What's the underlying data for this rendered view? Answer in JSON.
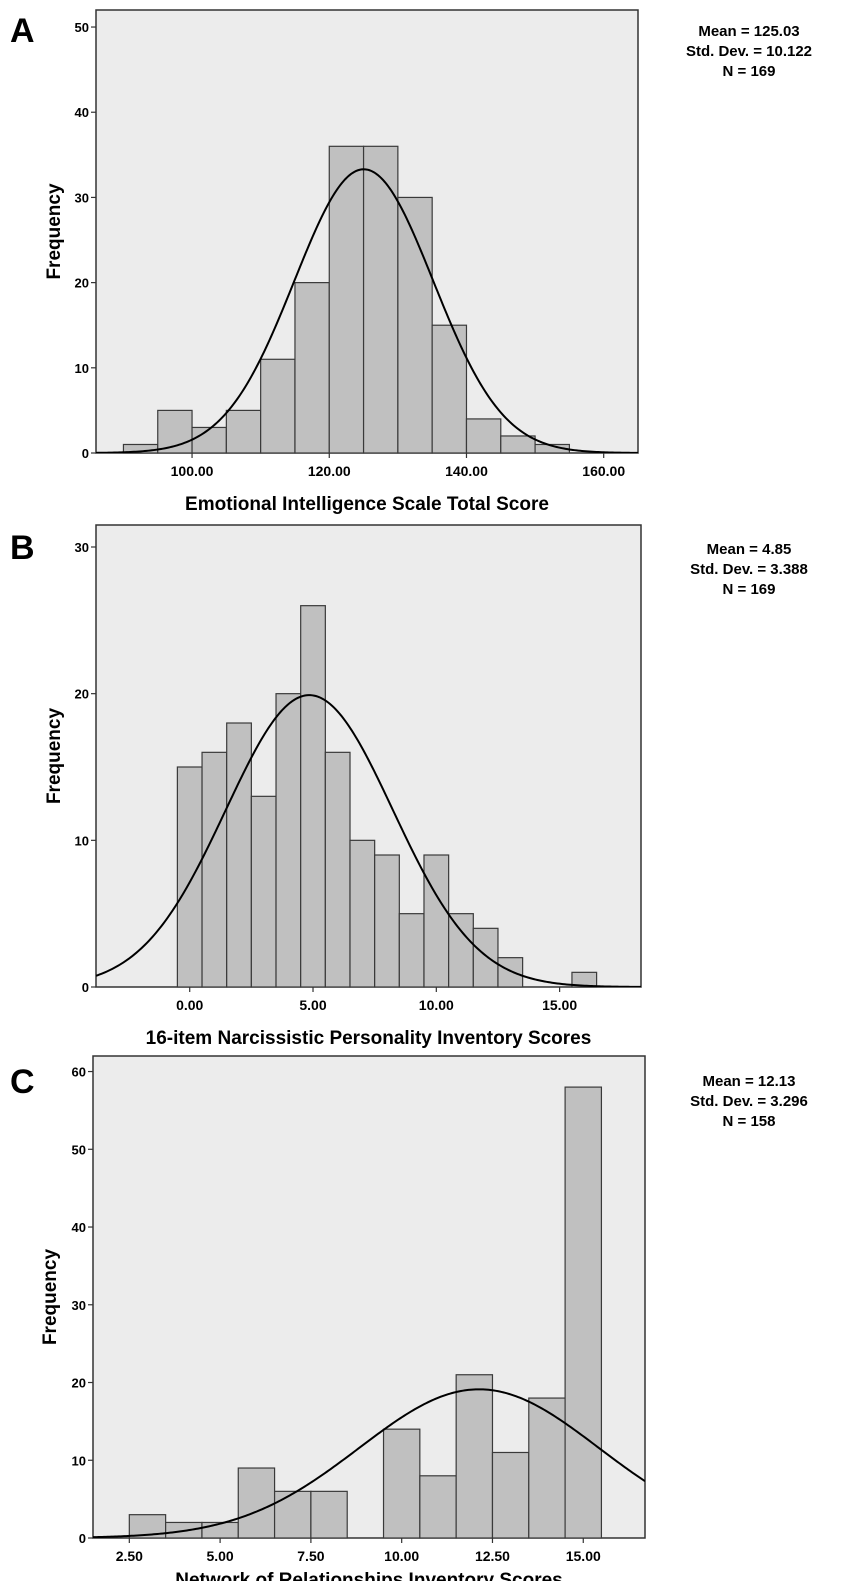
{
  "chart_data": [
    {
      "panel_label": "A",
      "type": "bar",
      "subtype": "histogram",
      "xlabel": "Emotional Intelligence Scale Total Score",
      "ylabel": "Frequency",
      "xlim": [
        86,
        165
      ],
      "ylim": [
        0,
        52
      ],
      "x_ticks": [
        100,
        120,
        140,
        160
      ],
      "x_tick_labels": [
        "100.00",
        "120.00",
        "140.00",
        "160.00"
      ],
      "y_ticks": [
        0,
        10,
        20,
        30,
        40,
        50
      ],
      "y_tick_labels": [
        "0",
        "10",
        "20",
        "30",
        "40",
        "50"
      ],
      "bin_width": 5,
      "bin_starts": [
        90,
        95,
        100,
        105,
        110,
        115,
        120,
        125,
        130,
        135,
        140,
        145,
        150
      ],
      "values": [
        1,
        5,
        3,
        5,
        11,
        20,
        36,
        36,
        30,
        15,
        4,
        2,
        1
      ],
      "normal_curve": true,
      "grid": false,
      "stats": [
        "Mean = 125.03",
        "Std. Dev. = 10.122",
        "N = 169"
      ],
      "stats_placement": "right",
      "colors": {
        "bar": "#c0c0c0",
        "plot_bg": "#ececec",
        "curve": "#000000"
      }
    },
    {
      "panel_label": "B",
      "type": "bar",
      "subtype": "histogram",
      "xlabel": "16-item Narcissistic Personality Inventory Scores",
      "ylabel": "Frequency",
      "xlim": [
        -3.8,
        18.3
      ],
      "ylim": [
        0,
        31.5
      ],
      "x_ticks": [
        0,
        5,
        10,
        15
      ],
      "x_tick_labels": [
        "0.00",
        "5.00",
        "10.00",
        "15.00"
      ],
      "y_ticks": [
        0,
        10,
        20,
        30
      ],
      "y_tick_labels": [
        "0",
        "10",
        "20",
        "30"
      ],
      "bin_width": 1,
      "bin_starts": [
        -0.5,
        0.5,
        1.5,
        2.5,
        3.5,
        4.5,
        5.5,
        6.5,
        7.5,
        8.5,
        9.5,
        10.5,
        11.5,
        12.5,
        15.5
      ],
      "values": [
        15,
        16,
        18,
        13,
        20,
        26,
        16,
        10,
        9,
        5,
        9,
        5,
        4,
        2,
        1
      ],
      "normal_curve": true,
      "grid": false,
      "stats": [
        "Mean = 4.85",
        "Std. Dev. = 3.388",
        "N = 169"
      ],
      "stats_placement": "right",
      "colors": {
        "bar": "#c0c0c0",
        "plot_bg": "#ececec",
        "curve": "#000000"
      }
    },
    {
      "panel_label": "C",
      "type": "bar",
      "subtype": "histogram",
      "xlabel": "Network of Relationships Inventory Scores",
      "ylabel": "Frequency",
      "xlim": [
        1.5,
        16.7
      ],
      "ylim": [
        0,
        62
      ],
      "x_ticks": [
        2.5,
        5,
        7.5,
        10,
        12.5,
        15
      ],
      "x_tick_labels": [
        "2.50",
        "5.00",
        "7.50",
        "10.00",
        "12.50",
        "15.00"
      ],
      "y_ticks": [
        0,
        10,
        20,
        30,
        40,
        50,
        60
      ],
      "y_tick_labels": [
        "0",
        "10",
        "20",
        "30",
        "40",
        "50",
        "60"
      ],
      "bin_width": 1,
      "bin_starts": [
        2.5,
        3.5,
        4.5,
        5.5,
        6.5,
        7.5,
        9.5,
        10.5,
        11.5,
        12.5,
        13.5,
        14.5
      ],
      "values": [
        3,
        2,
        2,
        9,
        6,
        6,
        14,
        8,
        21,
        11,
        18,
        58
      ],
      "normal_curve": true,
      "grid": false,
      "stats": [
        "Mean = 12.13",
        "Std. Dev. = 3.296",
        "N = 158"
      ],
      "stats_placement": "right",
      "colors": {
        "bar": "#c0c0c0",
        "plot_bg": "#ececec",
        "curve": "#000000"
      }
    }
  ]
}
